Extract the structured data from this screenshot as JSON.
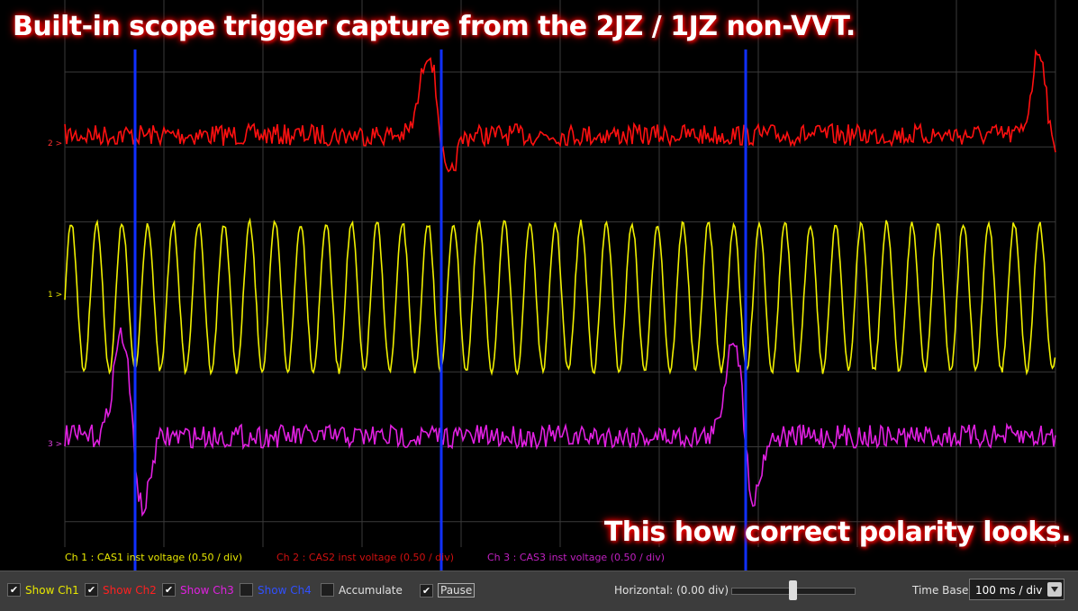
{
  "header": {
    "title": "Built-in scope trigger capture from the 2JZ / 1JZ non-VVT."
  },
  "caption": "This how correct polarity looks.",
  "channel_markers": [
    {
      "label": "2 >",
      "color": "#ff3030"
    },
    {
      "label": "1 >",
      "color": "#e8e800"
    },
    {
      "label": "3 >",
      "color": "#e040e0"
    }
  ],
  "legend": [
    {
      "label": "Ch 1 : CAS1 inst voltage (0.50 / div)",
      "color": "#e8e800"
    },
    {
      "label": "Ch 2 : CAS2 inst voltage (0.50 / div)",
      "color": "#d01010"
    },
    {
      "label": "Ch 3 : CAS3 inst voltage (0.50 / div)",
      "color": "#c020c0"
    }
  ],
  "controls": {
    "checkboxes": [
      {
        "label": "Show Ch1",
        "checked": true,
        "color": "#e8e800"
      },
      {
        "label": "Show Ch2",
        "checked": true,
        "color": "#ff2020"
      },
      {
        "label": "Show Ch3",
        "checked": true,
        "color": "#e020e0"
      },
      {
        "label": "Show Ch4",
        "checked": false,
        "color": "#3050ff"
      },
      {
        "label": "Accumulate",
        "checked": false,
        "color": "#e0e0e0"
      },
      {
        "label": "Pause",
        "checked": true,
        "color": "#e0e0e0"
      }
    ],
    "horizontal": "Horizontal: (0.00 div)",
    "time_base_label": "Time Base",
    "time_base": "100 ms / div"
  }
}
